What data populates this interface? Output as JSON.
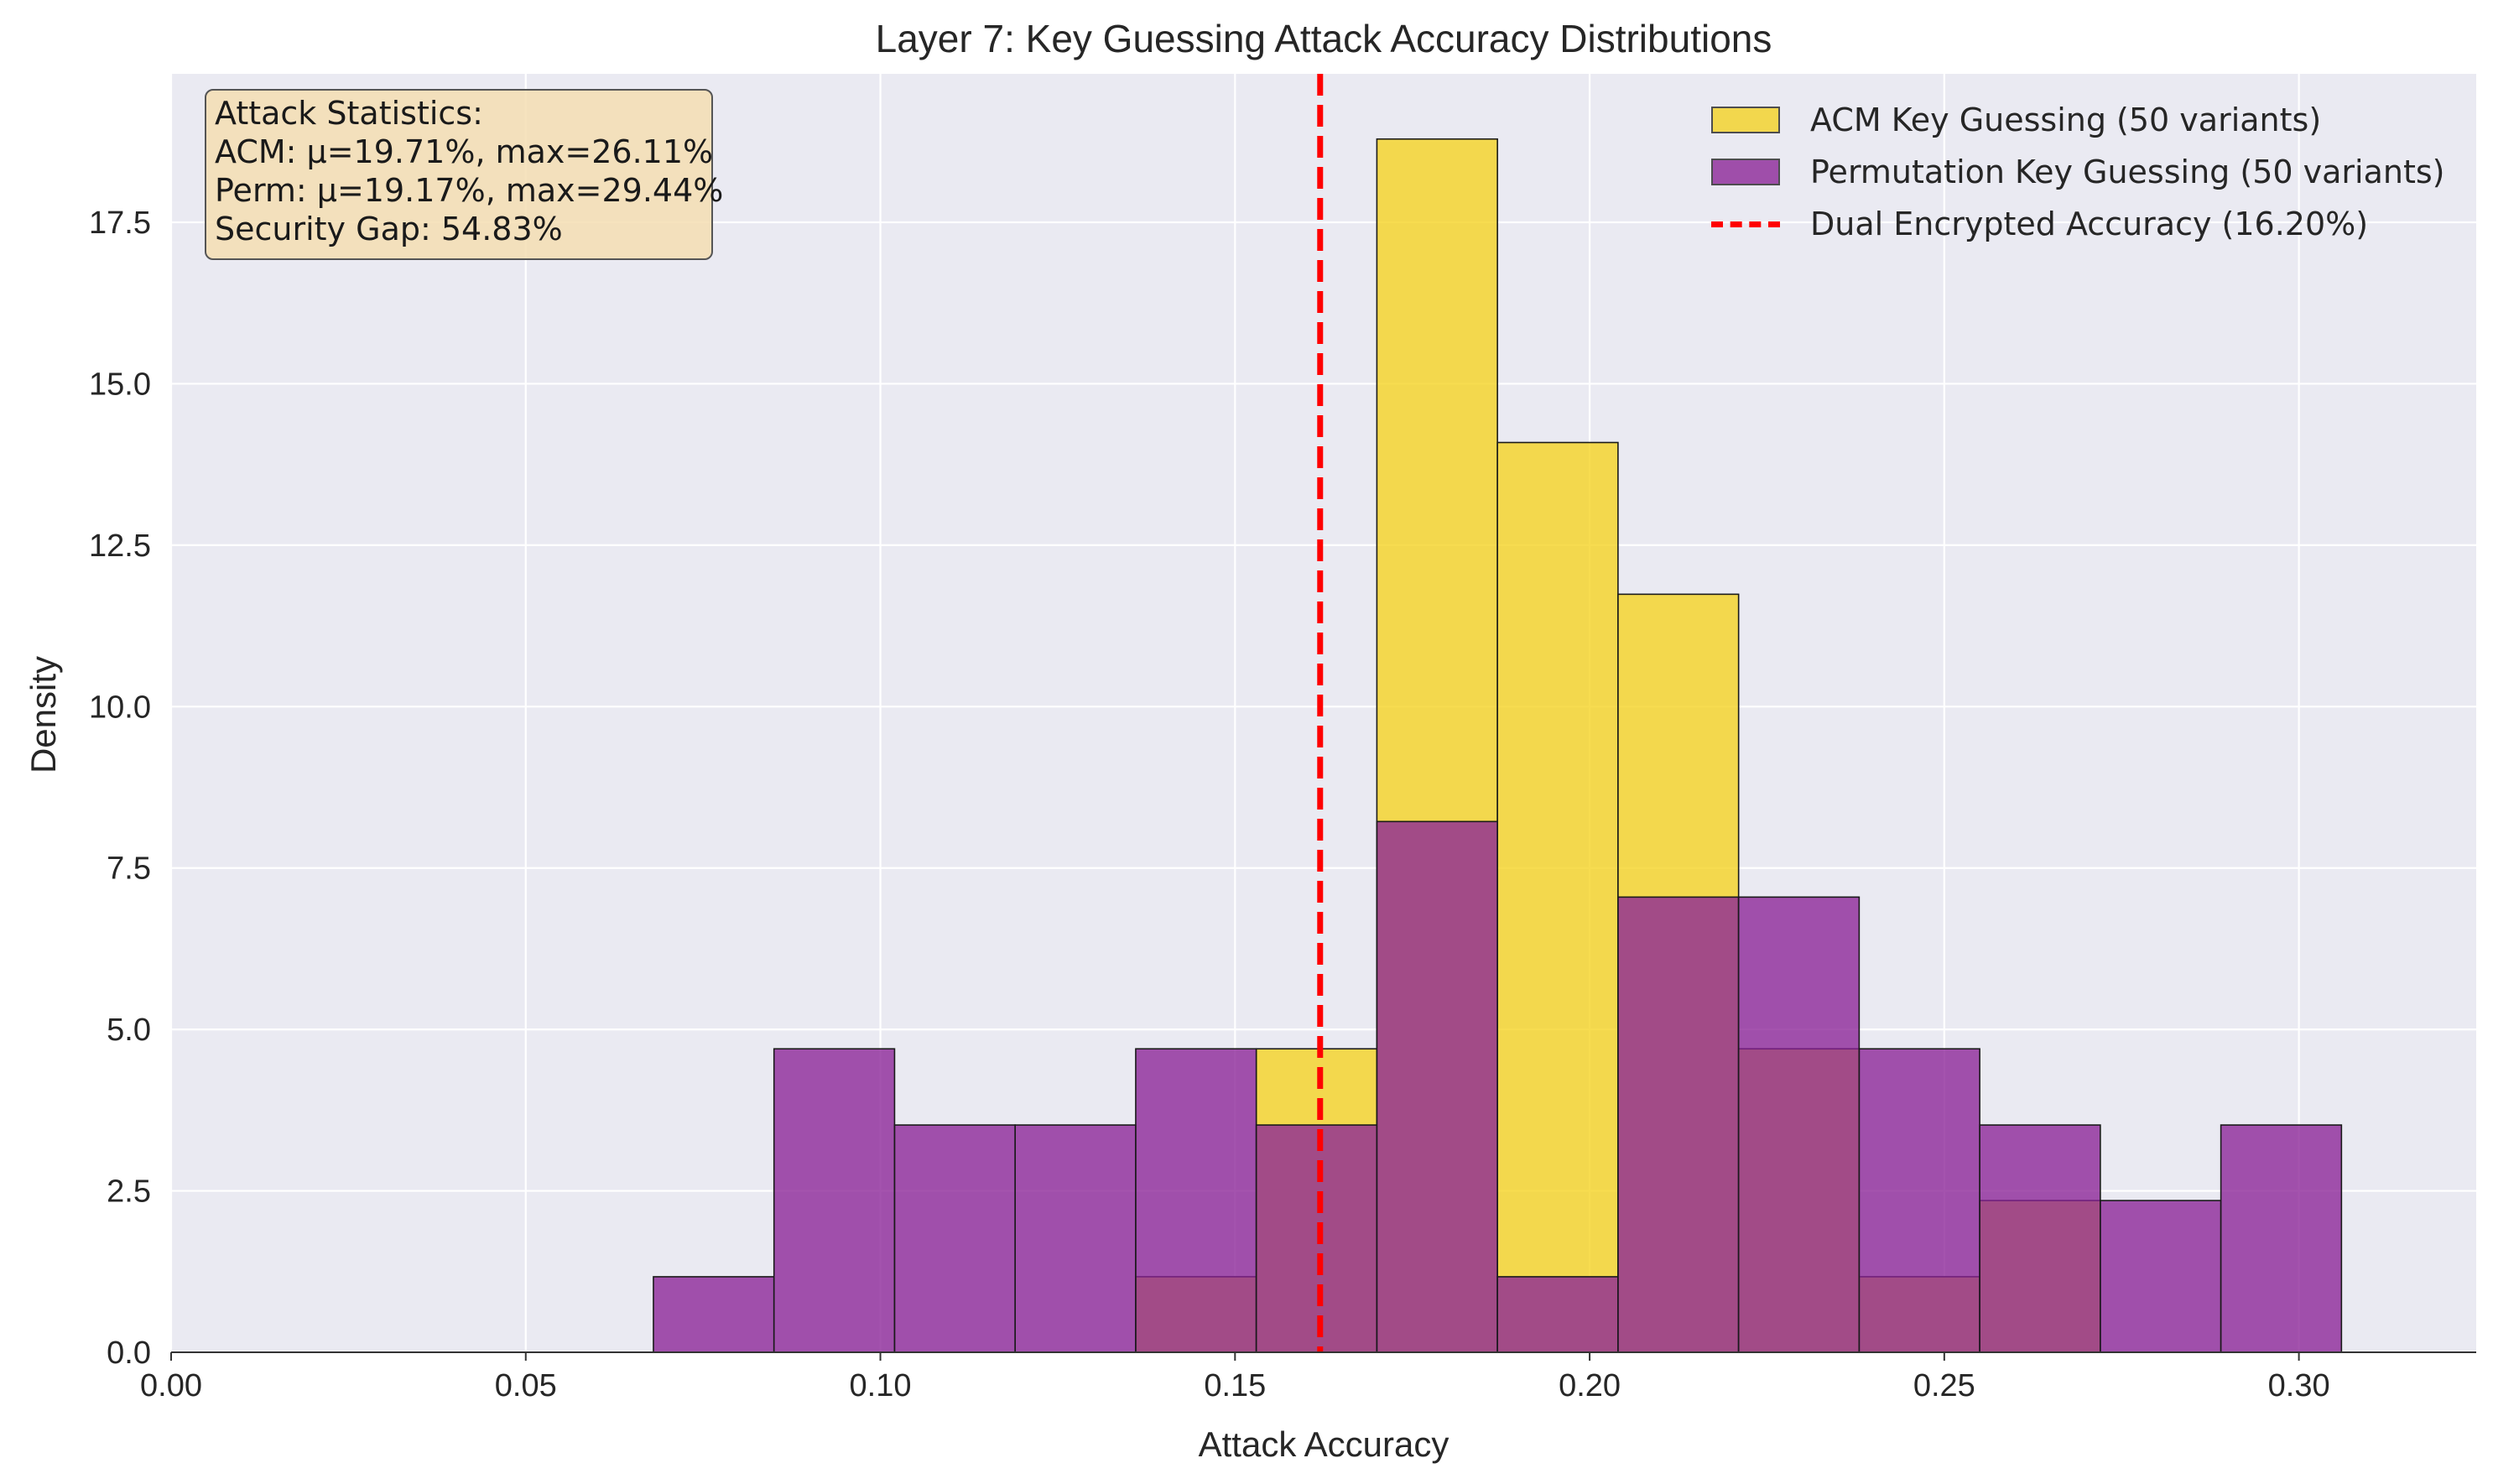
{
  "chart_data": {
    "type": "histogram",
    "title": "Layer 7: Key Guessing Attack Accuracy Distributions",
    "xlabel": "Attack Accuracy",
    "ylabel": "Density",
    "xlim": [
      0.0,
      0.325
    ],
    "ylim": [
      0.0,
      19.8
    ],
    "xticks": [
      0.0,
      0.05,
      0.1,
      0.15,
      0.2,
      0.25,
      0.3
    ],
    "xtick_labels": [
      "0.00",
      "0.05",
      "0.10",
      "0.15",
      "0.20",
      "0.25",
      "0.30"
    ],
    "yticks": [
      0.0,
      2.5,
      5.0,
      7.5,
      10.0,
      12.5,
      15.0,
      17.5
    ],
    "ytick_labels": [
      "0.0",
      "2.5",
      "5.0",
      "7.5",
      "10.0",
      "12.5",
      "15.0",
      "17.5"
    ],
    "grid": true,
    "legend_position": "top-right",
    "bin_edges": [
      0.068,
      0.085,
      0.102,
      0.119,
      0.136,
      0.153,
      0.17,
      0.187,
      0.204,
      0.221,
      0.238,
      0.255,
      0.272,
      0.289,
      0.306
    ],
    "series": [
      {
        "name": "ACM Key Guessing (50 variants)",
        "color": "#f5d21f",
        "values": [
          0,
          0,
          0,
          0,
          1.17,
          4.7,
          18.79,
          14.09,
          11.74,
          4.7,
          1.17,
          2.35,
          0,
          0
        ]
      },
      {
        "name": "Permutation Key Guessing (50 variants)",
        "color": "#8b2397",
        "values": [
          1.17,
          4.7,
          3.52,
          3.52,
          4.7,
          3.52,
          8.22,
          1.17,
          7.05,
          7.05,
          4.7,
          3.52,
          2.35,
          3.52
        ]
      }
    ],
    "reference_line": {
      "name": "Dual Encrypted Accuracy (16.20%)",
      "x": 0.162,
      "color": "#ff0000"
    },
    "annotation": {
      "lines": [
        "Attack Statistics:",
        "ACM: μ=19.71%, max=26.11%",
        "Perm: μ=19.17%, max=29.44%",
        "Security Gap: 54.83%"
      ]
    }
  }
}
